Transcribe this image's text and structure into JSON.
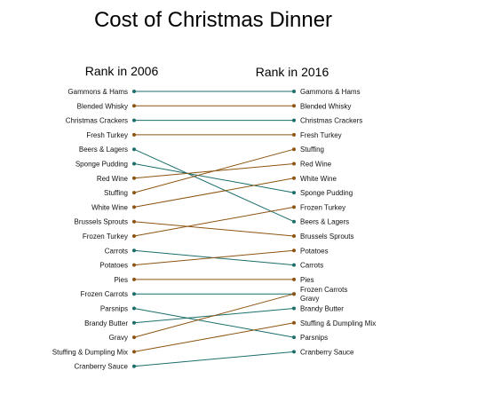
{
  "chart_data": {
    "type": "slope",
    "title": "Cost of Christmas Dinner",
    "left_heading": "Rank in 2006",
    "right_heading": "Rank in 2016",
    "colors": {
      "fall": "#1b6e6a",
      "rise": "#8c5410"
    },
    "left_ranks": [
      "Gammons & Hams",
      "Blended Whisky",
      "Christmas Crackers",
      "Fresh Turkey",
      "Beers & Lagers",
      "Sponge Pudding",
      "Red Wine",
      "Stuffing",
      "White Wine",
      "Brussels Sprouts",
      "Frozen Turkey",
      "Carrots",
      "Potatoes",
      "Pies",
      "Frozen Carrots",
      "Parsnips",
      "Brandy Butter",
      "Gravy",
      "Stuffing & Dumpling Mix",
      "Cranberry Sauce"
    ],
    "right_ranks": [
      "Gammons & Hams",
      "Blended Whisky",
      "Christmas Crackers",
      "Fresh Turkey",
      "Stuffing",
      "Red Wine",
      "White Wine",
      "Sponge Pudding",
      "Frozen Turkey",
      "Beers & Lagers",
      "Brussels Sprouts",
      "Potatoes",
      "Carrots",
      "Pies",
      "Frozen Carrots",
      "Brandy Butter",
      "Stuffing & Dumpling Mix",
      "Parsnips",
      "Cranberry Sauce"
    ],
    "shared_rank_extra_label": {
      "Frozen Carrots": "Gravy"
    },
    "links": [
      {
        "item": "Gammons & Hams",
        "rank_2006": 1,
        "rank_2016": 1,
        "direction": "fall"
      },
      {
        "item": "Blended Whisky",
        "rank_2006": 2,
        "rank_2016": 2,
        "direction": "rise"
      },
      {
        "item": "Christmas Crackers",
        "rank_2006": 3,
        "rank_2016": 3,
        "direction": "fall"
      },
      {
        "item": "Fresh Turkey",
        "rank_2006": 4,
        "rank_2016": 4,
        "direction": "rise"
      },
      {
        "item": "Beers & Lagers",
        "rank_2006": 5,
        "rank_2016": 10,
        "direction": "fall"
      },
      {
        "item": "Sponge Pudding",
        "rank_2006": 6,
        "rank_2016": 8,
        "direction": "fall"
      },
      {
        "item": "Red Wine",
        "rank_2006": 7,
        "rank_2016": 6,
        "direction": "rise"
      },
      {
        "item": "Stuffing",
        "rank_2006": 8,
        "rank_2016": 5,
        "direction": "rise"
      },
      {
        "item": "White Wine",
        "rank_2006": 9,
        "rank_2016": 7,
        "direction": "rise"
      },
      {
        "item": "Brussels Sprouts",
        "rank_2006": 10,
        "rank_2016": 11,
        "direction": "rise"
      },
      {
        "item": "Frozen Turkey",
        "rank_2006": 11,
        "rank_2016": 9,
        "direction": "rise"
      },
      {
        "item": "Carrots",
        "rank_2006": 12,
        "rank_2016": 13,
        "direction": "fall"
      },
      {
        "item": "Potatoes",
        "rank_2006": 13,
        "rank_2016": 12,
        "direction": "rise"
      },
      {
        "item": "Pies",
        "rank_2006": 14,
        "rank_2016": 14,
        "direction": "rise"
      },
      {
        "item": "Frozen Carrots",
        "rank_2006": 15,
        "rank_2016": 15,
        "direction": "fall"
      },
      {
        "item": "Parsnips",
        "rank_2006": 16,
        "rank_2016": 18,
        "direction": "fall"
      },
      {
        "item": "Brandy Butter",
        "rank_2006": 17,
        "rank_2016": 16,
        "direction": "fall"
      },
      {
        "item": "Gravy",
        "rank_2006": 18,
        "rank_2016": 15,
        "direction": "rise"
      },
      {
        "item": "Stuffing & Dumpling Mix",
        "rank_2006": 19,
        "rank_2016": 17,
        "direction": "rise"
      },
      {
        "item": "Cranberry Sauce",
        "rank_2006": 20,
        "rank_2016": 19,
        "direction": "fall"
      }
    ]
  }
}
